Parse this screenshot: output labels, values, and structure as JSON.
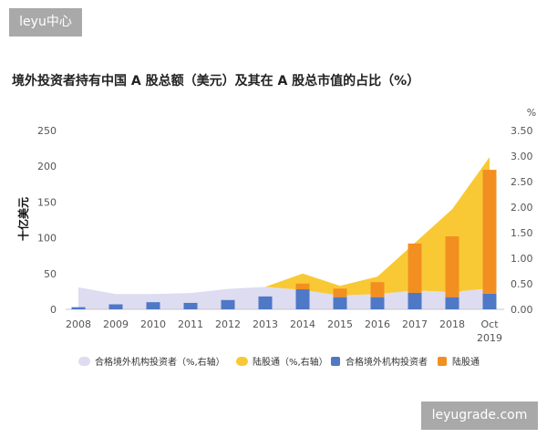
{
  "watermarks": {
    "top_left": "leyu中心",
    "bottom_right": "leyugrade.com"
  },
  "chart_data": {
    "type": "bar",
    "title": "境外投资者持有中国 A 股总额（美元）及其在 A 股总市值的占比（%）",
    "ylabel": "十亿美元",
    "y2label": "%",
    "categories": [
      "2008",
      "2009",
      "2010",
      "2011",
      "2012",
      "2013",
      "2014",
      "2015",
      "2016",
      "2017",
      "2018",
      "Oct 2019"
    ],
    "ylim": [
      0,
      250
    ],
    "yticks": [
      0,
      50,
      100,
      150,
      200,
      250
    ],
    "y2lim": [
      0,
      3.5
    ],
    "y2ticks": [
      "0.00",
      "0.50",
      "1.00",
      "1.50",
      "2.00",
      "2.50",
      "3.00",
      "3.50"
    ],
    "grid": false,
    "legend": "bottom",
    "stacked": true,
    "series": [
      {
        "name": "合格境外机构投资者（%,右轴）",
        "type": "area",
        "axis": "right",
        "color": "#dddcf1",
        "values": [
          0.43,
          0.3,
          0.3,
          0.32,
          0.4,
          0.44,
          0.38,
          0.27,
          0.3,
          0.37,
          0.34,
          0.41
        ]
      },
      {
        "name": "陆股通（%,右轴）",
        "type": "area",
        "axis": "right",
        "color": "#f9c935",
        "values": [
          0,
          0,
          0,
          0,
          0,
          0,
          0.32,
          0.19,
          0.34,
          0.93,
          1.62,
          2.57
        ]
      },
      {
        "name": "合格境外机构投资者",
        "type": "bar",
        "axis": "left",
        "color": "#4f78c6",
        "values": [
          3,
          7,
          10,
          9,
          13,
          18,
          28,
          17,
          17,
          23,
          17,
          22
        ]
      },
      {
        "name": "陆股通",
        "type": "bar",
        "axis": "left",
        "color": "#f28f20",
        "values": [
          0,
          0,
          0,
          0,
          0,
          0,
          8,
          12,
          21,
          69,
          85,
          173
        ]
      }
    ]
  }
}
